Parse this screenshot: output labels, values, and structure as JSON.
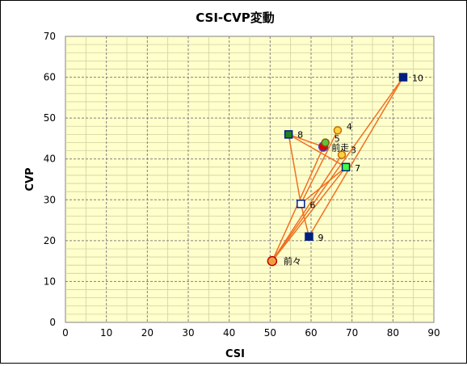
{
  "chart_data": {
    "type": "scatter",
    "title": "CSI-CVP変動",
    "xlabel": "CSI",
    "ylabel": "CVP",
    "xlim": [
      0,
      90
    ],
    "ylim": [
      0,
      70
    ],
    "xticks": [
      0,
      10,
      20,
      30,
      40,
      50,
      60,
      70,
      80,
      90
    ],
    "yticks": [
      0,
      10,
      20,
      30,
      40,
      50,
      60,
      70
    ],
    "grid": true,
    "plot_background": "#ffffcc",
    "line_color": "#f07020",
    "points": [
      {
        "label": "前々",
        "x": 50.5,
        "y": 15,
        "marker": "circle",
        "fill": "#f0a040",
        "stroke": "#c00000",
        "r": 5.5
      },
      {
        "label": "前走",
        "x": 63,
        "y": 43,
        "marker": "circle",
        "fill": "#e00000",
        "stroke": "#4040c0",
        "r": 5.5
      },
      {
        "label": "3",
        "x": 67.5,
        "y": 41,
        "marker": "circle",
        "fill": "#ffd040",
        "stroke": "#c07000",
        "r": 4.5
      },
      {
        "label": "4",
        "x": 66.5,
        "y": 47,
        "marker": "circle",
        "fill": "#ffd040",
        "stroke": "#c07000",
        "r": 4.5
      },
      {
        "label": "5",
        "x": 63.5,
        "y": 44,
        "marker": "circle",
        "fill": "#60c040",
        "stroke": "#806000",
        "r": 4.5
      },
      {
        "label": "6",
        "x": 57.5,
        "y": 29,
        "marker": "square",
        "fill": "#ffffff",
        "stroke": "#002080",
        "r": 4.5
      },
      {
        "label": "7",
        "x": 68.5,
        "y": 38,
        "marker": "square",
        "fill": "#40ff40",
        "stroke": "#002080",
        "r": 4.5
      },
      {
        "label": "8",
        "x": 54.5,
        "y": 46,
        "marker": "square",
        "fill": "#208020",
        "stroke": "#002080",
        "r": 4.5
      },
      {
        "label": "9",
        "x": 59.5,
        "y": 21,
        "marker": "square",
        "fill": "#002080",
        "stroke": "#002080",
        "r": 4.5
      },
      {
        "label": "10",
        "x": 82.5,
        "y": 60,
        "marker": "square",
        "fill": "#002080",
        "stroke": "#002080",
        "r": 4.5
      }
    ],
    "connections": [
      [
        "10",
        "前々"
      ],
      [
        "9",
        "10"
      ],
      [
        "前々",
        "3"
      ],
      [
        "前々",
        "7"
      ],
      [
        "前々",
        "5"
      ],
      [
        "8",
        "6"
      ],
      [
        "8",
        "7"
      ],
      [
        "8",
        "前走"
      ],
      [
        "6",
        "7"
      ],
      [
        "6",
        "9"
      ],
      [
        "6",
        "4"
      ]
    ]
  }
}
